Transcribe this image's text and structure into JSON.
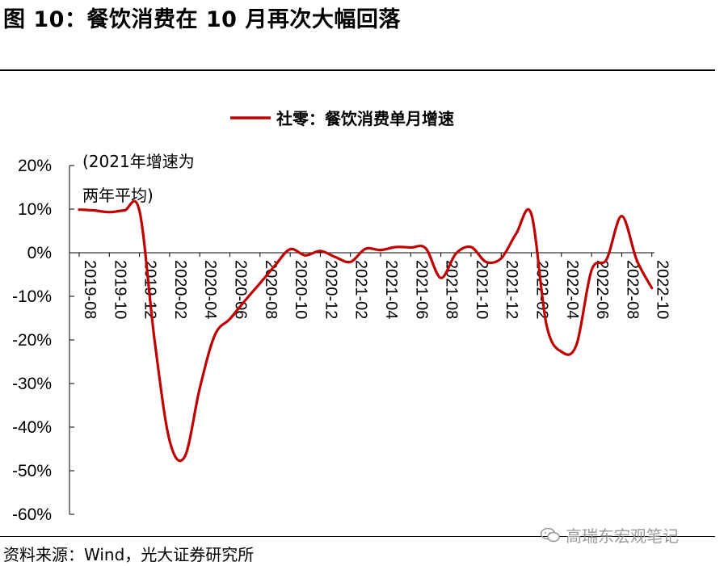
{
  "figure": {
    "title": "图 10：餐饮消费在 10 月再次大幅回落",
    "source": "资料来源：Wind，光大证券研究所",
    "watermark": "高瑞东宏观笔记"
  },
  "chart_data": {
    "type": "line",
    "title": "",
    "xlabel": "",
    "ylabel": "",
    "ylim": [
      -60,
      20
    ],
    "y_ticks": [
      "20%",
      "10%",
      "0%",
      "-10%",
      "-20%",
      "-30%",
      "-40%",
      "-50%",
      "-60%"
    ],
    "x_tick_labels": [
      "2019-08",
      "2019-10",
      "2019-12",
      "2020-02",
      "2020-04",
      "2020-06",
      "2020-08",
      "2020-10",
      "2020-12",
      "2021-02",
      "2021-04",
      "2021-06",
      "2021-08",
      "2021-10",
      "2021-12",
      "2022-02",
      "2022-04",
      "2022-06",
      "2022-08",
      "2022-10"
    ],
    "legend": {
      "position": "top-center"
    },
    "annotation": [
      "(2021年增速为",
      "两年平均)"
    ],
    "color": "#C00000",
    "series": [
      {
        "name": "社零：餐饮消费单月增速",
        "x": [
          "2019-08",
          "2019-09",
          "2019-10",
          "2019-11",
          "2019-12",
          "2020-01",
          "2020-02",
          "2020-03",
          "2020-04",
          "2020-05",
          "2020-06",
          "2020-07",
          "2020-08",
          "2020-09",
          "2020-10",
          "2020-11",
          "2020-12",
          "2021-01",
          "2021-02",
          "2021-03",
          "2021-04",
          "2021-05",
          "2021-06",
          "2021-07",
          "2021-08",
          "2021-09",
          "2021-10",
          "2021-11",
          "2021-12",
          "2022-01",
          "2022-02",
          "2022-03",
          "2022-04",
          "2022-05",
          "2022-06",
          "2022-07",
          "2022-08",
          "2022-09",
          "2022-10"
        ],
        "values": [
          9.9,
          9.7,
          9.3,
          9.7,
          9.6,
          -20.0,
          -43.1,
          -46.8,
          -31.1,
          -18.9,
          -15.2,
          -11.0,
          -7.0,
          -2.9,
          0.8,
          -0.6,
          0.4,
          -1.0,
          -2.1,
          0.9,
          0.6,
          1.3,
          1.2,
          1.0,
          -5.8,
          -0.2,
          1.3,
          -2.1,
          -1.3,
          4.4,
          8.9,
          -16.4,
          -22.7,
          -21.1,
          -4.0,
          -1.5,
          8.4,
          -1.7,
          -8.1
        ]
      }
    ]
  }
}
